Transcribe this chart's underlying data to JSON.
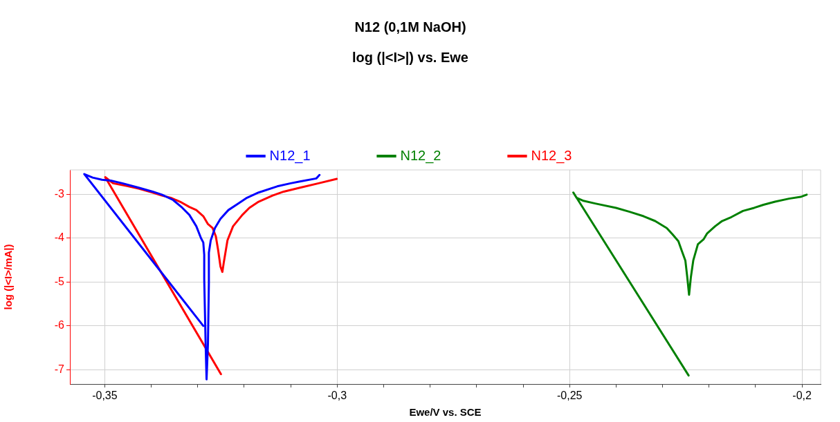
{
  "chart_data": {
    "type": "line",
    "title": "N12 (0,1M NaOH)",
    "subtitle": "log (|<I>|) vs. Ewe",
    "xlabel": "Ewe/V vs. SCE",
    "ylabel": "log (|<I>/mA|)",
    "xlim": [
      -0.3575,
      -0.196
    ],
    "ylim": [
      -7.325,
      -2.445
    ],
    "xticks": [
      {
        "value": -0.35,
        "label": "-0,35"
      },
      {
        "value": -0.34,
        "label": null
      },
      {
        "value": -0.33,
        "label": null
      },
      {
        "value": -0.32,
        "label": null
      },
      {
        "value": -0.31,
        "label": null
      },
      {
        "value": -0.3,
        "label": "-0,3"
      },
      {
        "value": -0.29,
        "label": null
      },
      {
        "value": -0.28,
        "label": null
      },
      {
        "value": -0.27,
        "label": null
      },
      {
        "value": -0.26,
        "label": null
      },
      {
        "value": -0.25,
        "label": "-0,25"
      },
      {
        "value": -0.24,
        "label": null
      },
      {
        "value": -0.23,
        "label": null
      },
      {
        "value": -0.22,
        "label": null
      },
      {
        "value": -0.21,
        "label": null
      },
      {
        "value": -0.2,
        "label": "-0,2"
      }
    ],
    "yticks": [
      -7,
      -6,
      -5,
      -4,
      -3
    ],
    "grid": true,
    "legend": "top",
    "marker": "none",
    "line_style": "solid",
    "series": [
      {
        "name": "N12_1",
        "color": "#0000ff",
        "x": [
          -0.3288,
          -0.3544,
          -0.3526,
          -0.3506,
          -0.3487,
          -0.3462,
          -0.3427,
          -0.3397,
          -0.3377,
          -0.3353,
          -0.3333,
          -0.3318,
          -0.3303,
          -0.3293,
          -0.3288,
          -0.3286,
          -0.3286,
          -0.3283,
          -0.3281,
          -0.3278,
          -0.3276,
          -0.3276,
          -0.3272,
          -0.3263,
          -0.3251,
          -0.3234,
          -0.3214,
          -0.3194,
          -0.3169,
          -0.3129,
          -0.31,
          -0.308,
          -0.3045,
          -0.3038
        ],
        "values": [
          -6.0,
          -2.54,
          -2.62,
          -2.67,
          -2.69,
          -2.75,
          -2.85,
          -2.94,
          -3.01,
          -3.13,
          -3.31,
          -3.47,
          -3.73,
          -4.0,
          -4.1,
          -4.38,
          -4.93,
          -6.41,
          -7.22,
          -6.41,
          -5.02,
          -4.33,
          -4.05,
          -3.77,
          -3.56,
          -3.36,
          -3.22,
          -3.08,
          -2.96,
          -2.82,
          -2.75,
          -2.71,
          -2.64,
          -2.56
        ]
      },
      {
        "name": "N12_2",
        "color": "#008000",
        "x": [
          -0.2244,
          -0.2492,
          -0.2485,
          -0.247,
          -0.2445,
          -0.24,
          -0.2371,
          -0.2341,
          -0.2316,
          -0.2291,
          -0.2279,
          -0.2266,
          -0.2259,
          -0.2251,
          -0.2247,
          -0.2243,
          -0.2239,
          -0.2234,
          -0.2224,
          -0.2212,
          -0.2204,
          -0.2187,
          -0.2172,
          -0.2152,
          -0.2127,
          -0.2103,
          -0.2083,
          -0.2058,
          -0.2028,
          -0.2003,
          -0.199
        ],
        "values": [
          -7.13,
          -2.96,
          -3.08,
          -3.15,
          -3.21,
          -3.31,
          -3.4,
          -3.5,
          -3.61,
          -3.77,
          -3.91,
          -4.07,
          -4.28,
          -4.51,
          -4.88,
          -5.29,
          -4.88,
          -4.51,
          -4.14,
          -4.03,
          -3.89,
          -3.73,
          -3.61,
          -3.52,
          -3.38,
          -3.31,
          -3.24,
          -3.17,
          -3.1,
          -3.06,
          -3.01
        ]
      },
      {
        "name": "N12_3",
        "color": "#ff0000",
        "x": [
          -0.325,
          -0.3499,
          -0.3482,
          -0.3452,
          -0.3427,
          -0.3397,
          -0.3377,
          -0.3358,
          -0.3338,
          -0.3318,
          -0.3303,
          -0.3288,
          -0.3278,
          -0.3268,
          -0.3261,
          -0.3256,
          -0.3251,
          -0.3247,
          -0.3244,
          -0.3236,
          -0.3224,
          -0.3204,
          -0.3189,
          -0.3169,
          -0.3139,
          -0.3115,
          -0.308,
          -0.304,
          -0.3001
        ],
        "values": [
          -7.1,
          -2.61,
          -2.75,
          -2.81,
          -2.87,
          -2.96,
          -3.03,
          -3.08,
          -3.17,
          -3.29,
          -3.36,
          -3.5,
          -3.68,
          -3.77,
          -3.96,
          -4.28,
          -4.65,
          -4.77,
          -4.56,
          -4.05,
          -3.73,
          -3.47,
          -3.31,
          -3.17,
          -3.03,
          -2.94,
          -2.85,
          -2.75,
          -2.65
        ]
      }
    ]
  }
}
